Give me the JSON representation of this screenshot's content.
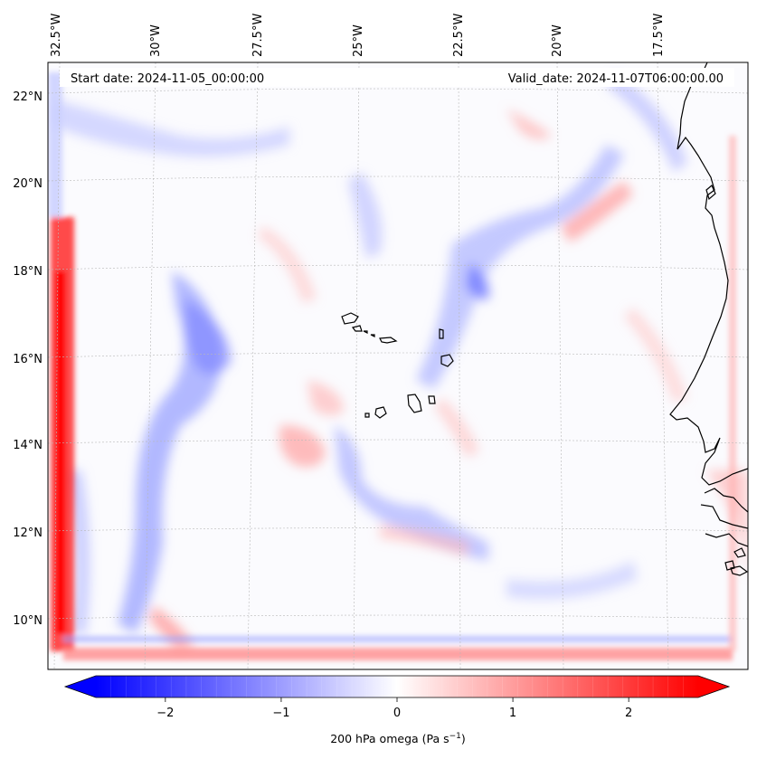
{
  "map": {
    "start_date_text": "Start date: 2024-11-05_00:00:00",
    "valid_date_text": "Valid_date: 2024-11-07T06:00:00.00",
    "lon_labels": [
      "32.5°W",
      "30°W",
      "27.5°W",
      "25°W",
      "22.5°W",
      "20°W",
      "17.5°W"
    ],
    "lat_labels": [
      "22°N",
      "20°N",
      "18°N",
      "16°N",
      "14°N",
      "12°N",
      "10°N"
    ],
    "field": "200 hPa omega"
  },
  "colorbar": {
    "ticks": [
      "−2",
      "−1",
      "0",
      "1",
      "2"
    ],
    "tick_values": [
      -2,
      -1,
      0,
      1,
      2
    ],
    "range": [
      -2.6,
      2.6
    ],
    "label_main": "200 hPa omega (Pa s",
    "label_sup": "−1",
    "label_close": ")",
    "cmap": "bwr",
    "color_low": "#0000ff",
    "color_mid": "#ffffff",
    "color_high": "#ff0000"
  }
}
